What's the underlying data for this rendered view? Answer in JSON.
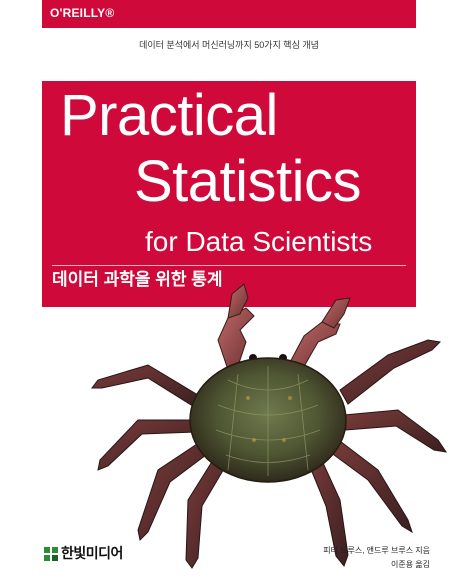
{
  "brand": {
    "logo": "O'REILLY®",
    "accent_color": "#cf0a3a"
  },
  "tagline": "데이터 분석에서 머신러닝까지 50가지 핵심 개념",
  "title": {
    "line1": "Practical",
    "line2": "Statistics",
    "line3": "for Data Scientists",
    "korean": "데이터 과학을 위한 통계"
  },
  "illustration": {
    "icon": "crab-illustration"
  },
  "publisher": {
    "name": "한빛미디어",
    "icon": "publisher-logo-icon"
  },
  "credits": {
    "authors": "피터 브루스, 앤드루 브루스 지음",
    "translator": "이준용 옮김"
  }
}
